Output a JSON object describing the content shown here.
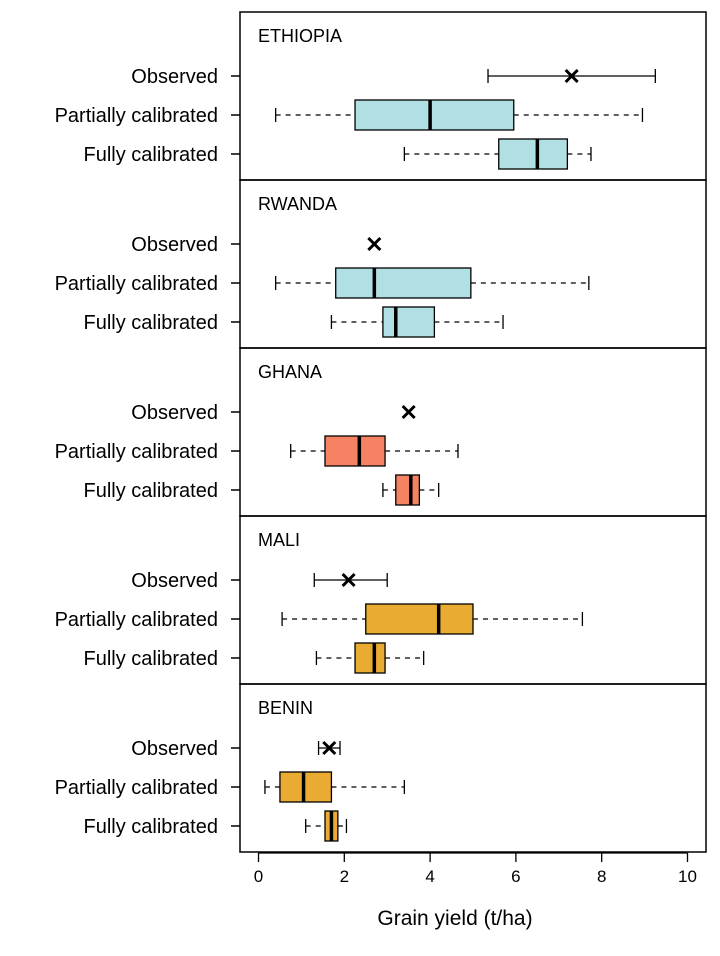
{
  "chart_data": {
    "type": "boxplot",
    "xlabel": "Grain yield (t/ha)",
    "xlim": [
      -0.4,
      10.4
    ],
    "xticks": [
      0,
      2,
      4,
      6,
      8,
      10
    ],
    "row_labels": [
      "Observed",
      "Partially calibrated",
      "Fully calibrated"
    ],
    "panels": [
      {
        "name": "ETHIOPIA",
        "color": "#b0e0e4",
        "observed": {
          "mean": 7.3,
          "min": 5.35,
          "max": 9.25
        },
        "partial": {
          "whisker_low": 0.4,
          "q1": 2.25,
          "median": 4.0,
          "q3": 5.95,
          "whisker_high": 8.95
        },
        "full": {
          "whisker_low": 3.4,
          "q1": 5.6,
          "median": 6.5,
          "q3": 7.2,
          "whisker_high": 7.75
        }
      },
      {
        "name": "RWANDA",
        "color": "#b0e0e4",
        "observed": {
          "mean": 2.7
        },
        "partial": {
          "whisker_low": 0.4,
          "q1": 1.8,
          "median": 2.7,
          "q3": 4.95,
          "whisker_high": 7.7
        },
        "full": {
          "whisker_low": 1.7,
          "q1": 2.9,
          "median": 3.2,
          "q3": 4.1,
          "whisker_high": 5.7
        }
      },
      {
        "name": "GHANA",
        "color": "#f58262",
        "observed": {
          "mean": 3.5
        },
        "partial": {
          "whisker_low": 0.75,
          "q1": 1.55,
          "median": 2.35,
          "q3": 2.95,
          "whisker_high": 4.65
        },
        "full": {
          "whisker_low": 2.9,
          "q1": 3.2,
          "median": 3.55,
          "q3": 3.75,
          "whisker_high": 4.2
        }
      },
      {
        "name": "MALI",
        "color": "#eaab33",
        "observed": {
          "mean": 2.1,
          "min": 1.3,
          "max": 3.0
        },
        "partial": {
          "whisker_low": 0.55,
          "q1": 2.5,
          "median": 4.2,
          "q3": 5.0,
          "whisker_high": 7.55
        },
        "full": {
          "whisker_low": 1.35,
          "q1": 2.25,
          "median": 2.7,
          "q3": 2.95,
          "whisker_high": 3.85
        }
      },
      {
        "name": "BENIN",
        "color": "#eaab33",
        "observed": {
          "mean": 1.65,
          "min": 1.4,
          "max": 1.9
        },
        "partial": {
          "whisker_low": 0.15,
          "q1": 0.5,
          "median": 1.05,
          "q3": 1.7,
          "whisker_high": 3.4
        },
        "full": {
          "whisker_low": 1.1,
          "q1": 1.55,
          "median": 1.7,
          "q3": 1.85,
          "whisker_high": 2.05
        }
      }
    ]
  }
}
